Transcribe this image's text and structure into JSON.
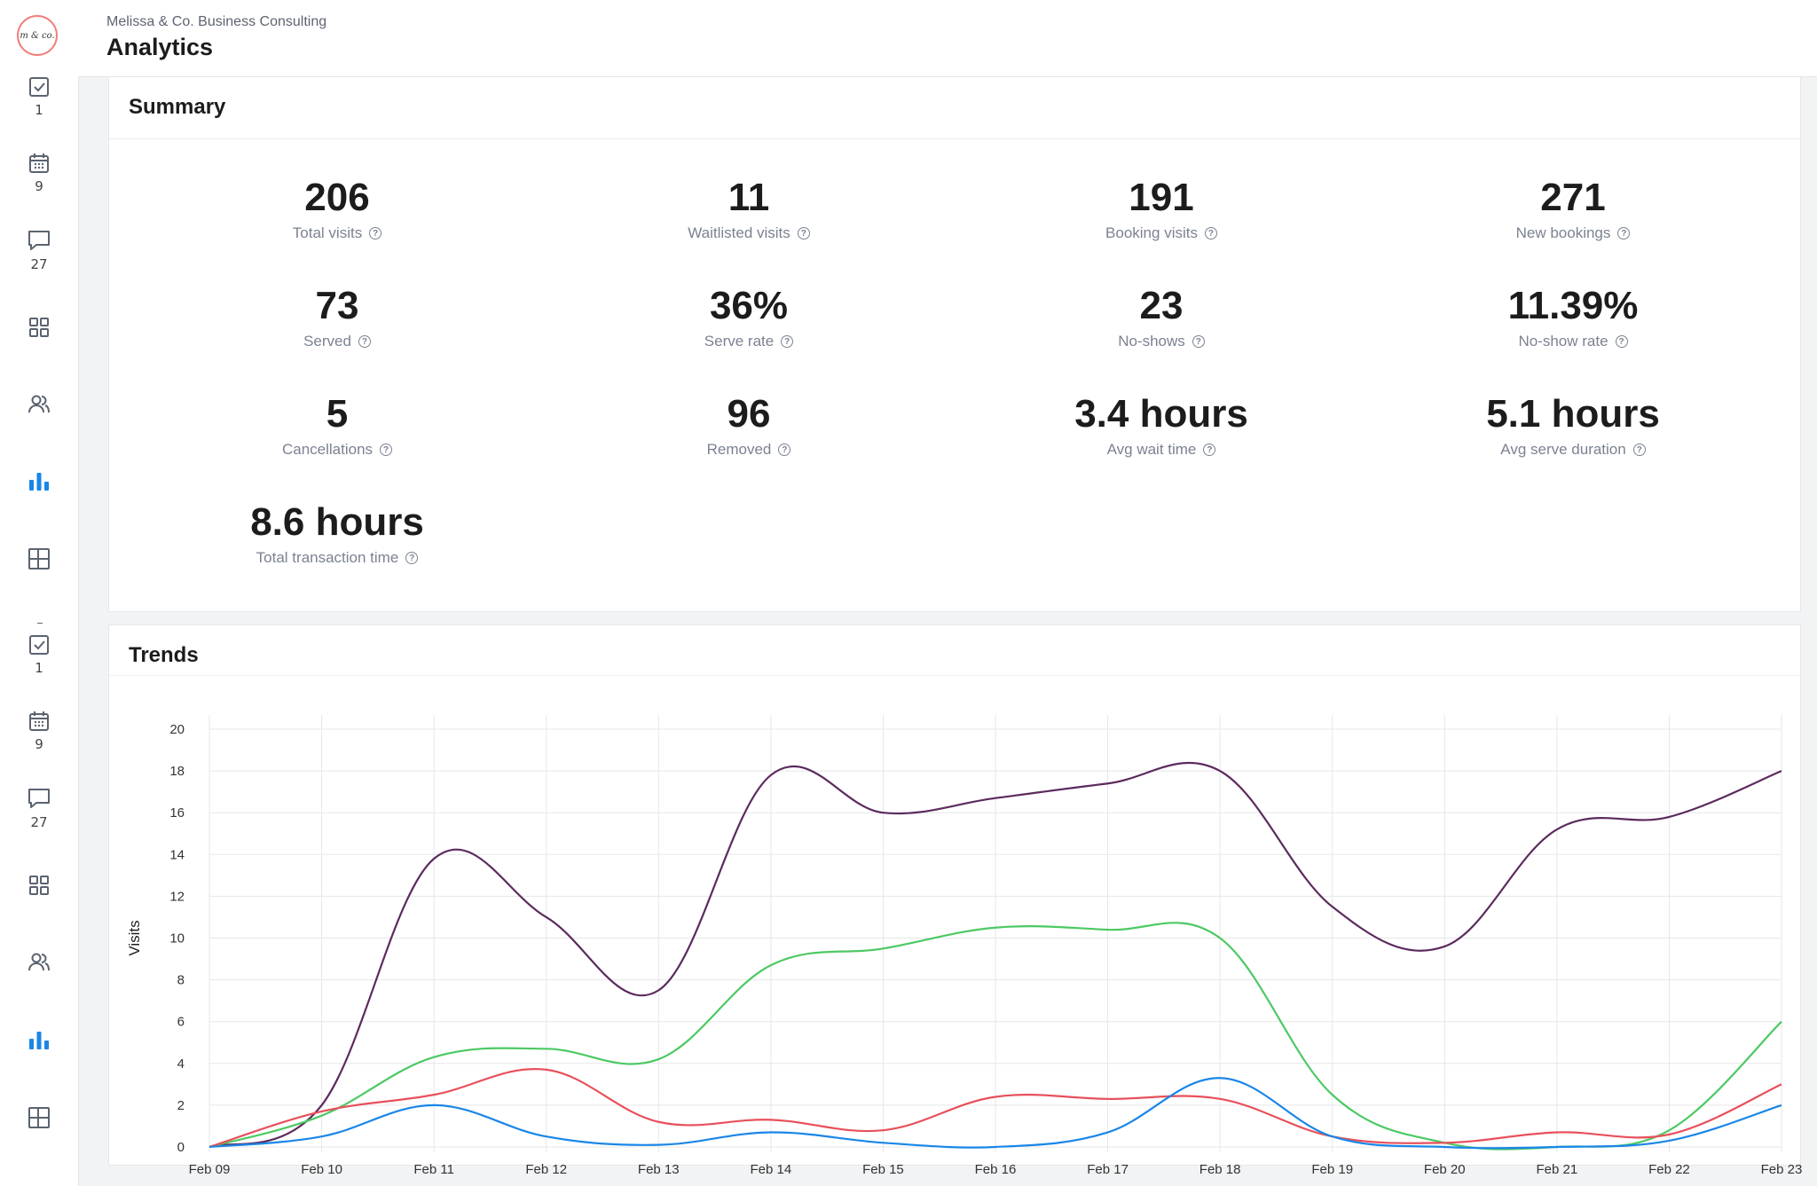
{
  "header": {
    "org_name": "Melissa & Co. Business Consulting",
    "title": "Analytics"
  },
  "sidebar": {
    "logo_text": "m & co.",
    "items": [
      {
        "icon": "checkbox-icon",
        "count": "1"
      },
      {
        "icon": "calendar-icon",
        "count": "9"
      },
      {
        "icon": "chat-icon",
        "count": "27"
      },
      {
        "icon": "grid-icon",
        "count": ""
      },
      {
        "icon": "users-icon",
        "count": ""
      },
      {
        "icon": "bar-chart-icon",
        "count": ""
      },
      {
        "icon": "layout-icon",
        "count": ""
      },
      {
        "icon": "checkbox-icon",
        "count": "1"
      },
      {
        "icon": "calendar-icon",
        "count": "9"
      },
      {
        "icon": "chat-icon",
        "count": "27"
      },
      {
        "icon": "grid-icon",
        "count": ""
      },
      {
        "icon": "users-icon",
        "count": ""
      },
      {
        "icon": "bar-chart-icon",
        "count": ""
      },
      {
        "icon": "layout-icon",
        "count": ""
      }
    ],
    "active_color": "#1a86e8"
  },
  "summary": {
    "title": "Summary",
    "stats": [
      {
        "value": "206",
        "label": "Total visits"
      },
      {
        "value": "11",
        "label": "Waitlisted visits"
      },
      {
        "value": "191",
        "label": "Booking visits"
      },
      {
        "value": "271",
        "label": "New bookings"
      },
      {
        "value": "73",
        "label": "Served"
      },
      {
        "value": "36%",
        "label": "Serve rate"
      },
      {
        "value": "23",
        "label": "No-shows"
      },
      {
        "value": "11.39%",
        "label": "No-show rate"
      },
      {
        "value": "5",
        "label": "Cancellations"
      },
      {
        "value": "96",
        "label": "Removed"
      },
      {
        "value": "3.4 hours",
        "label": "Avg wait time"
      },
      {
        "value": "5.1 hours",
        "label": "Avg serve duration"
      },
      {
        "value": "8.6 hours",
        "label": "Total transaction time"
      }
    ],
    "help_glyph": "?"
  },
  "trends": {
    "title": "Trends"
  },
  "chart_data": {
    "type": "line",
    "title": "",
    "xlabel": "",
    "ylabel": "Visits",
    "ylim": [
      0,
      20
    ],
    "yticks": [
      0,
      2,
      4,
      6,
      8,
      10,
      12,
      14,
      16,
      18,
      20
    ],
    "grid": true,
    "legend": "none",
    "categories": [
      "Feb 09",
      "Feb 10",
      "Feb 11",
      "Feb 12",
      "Feb 13",
      "Feb 14",
      "Feb 15",
      "Feb 16",
      "Feb 17",
      "Feb 18",
      "Feb 19",
      "Feb 20",
      "Feb 21",
      "Feb 22",
      "Feb 23"
    ],
    "series": [
      {
        "color": "#5c2a5e",
        "values": [
          0,
          2,
          13.8,
          11,
          7.5,
          17.8,
          16,
          16.7,
          17.4,
          18,
          11.5,
          9.6,
          15.2,
          15.8,
          18
        ]
      },
      {
        "color": "#4cc963",
        "values": [
          0,
          1.5,
          4.3,
          4.7,
          4.2,
          8.7,
          9.5,
          10.5,
          10.4,
          10,
          2.5,
          0.2,
          0,
          0.8,
          6
        ]
      },
      {
        "color": "#e8505b",
        "values": [
          0,
          1.7,
          2.5,
          3.7,
          1.2,
          1.3,
          0.8,
          2.4,
          2.3,
          2.3,
          0.5,
          0.2,
          0.7,
          0.6,
          3
        ]
      },
      {
        "color": "#1a86e8",
        "values": [
          0,
          0.5,
          2,
          0.5,
          0.1,
          0.7,
          0.2,
          0,
          0.7,
          3.3,
          0.5,
          0,
          0,
          0.3,
          2
        ]
      }
    ]
  }
}
